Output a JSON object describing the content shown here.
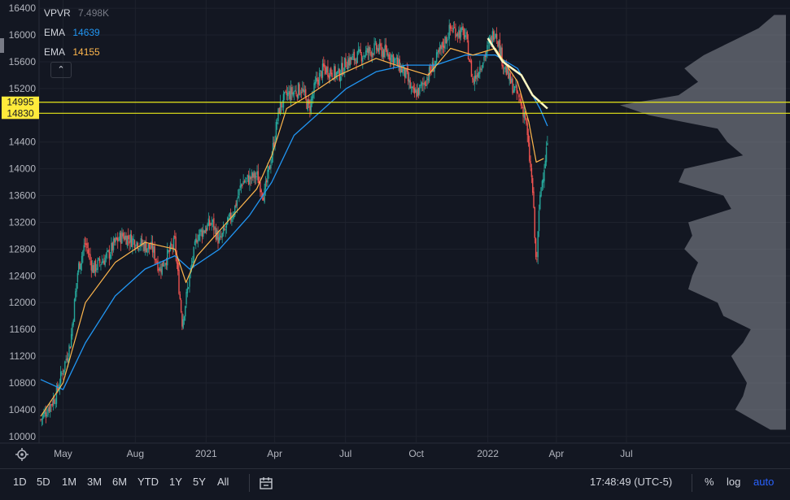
{
  "legend": {
    "vpvr": {
      "label": "VPVR",
      "value": "7.498K"
    },
    "ema1": {
      "label": "EMA",
      "value": "14639",
      "color": "#2196f3"
    },
    "ema2": {
      "label": "EMA",
      "value": "14155",
      "color": "#ffb74d"
    }
  },
  "price_tags": [
    {
      "value": "14995",
      "price": 14995
    },
    {
      "value": "14830",
      "price": 14830
    }
  ],
  "bottom": {
    "ranges": [
      "1D",
      "5D",
      "1M",
      "3M",
      "6M",
      "YTD",
      "1Y",
      "5Y",
      "All"
    ],
    "time": "17:48:49 (UTC-5)",
    "percent": "%",
    "log": "log",
    "auto": "auto"
  },
  "icons": {
    "settings": "gear-icon",
    "collapse": "chevron-up-icon",
    "goto": "calendar-icon"
  },
  "chart_data": {
    "type": "candlestick",
    "ylim": [
      9900,
      16450
    ],
    "y_ticks": [
      10000,
      10400,
      10800,
      11200,
      11600,
      12000,
      12400,
      12800,
      13200,
      13600,
      14000,
      14400,
      15200,
      15600,
      16000,
      16400
    ],
    "x_ticks": [
      {
        "label": "May",
        "t": 0.03
      },
      {
        "label": "Aug",
        "t": 0.127
      },
      {
        "label": "2021",
        "t": 0.222
      },
      {
        "label": "Apr",
        "t": 0.314
      },
      {
        "label": "Jul",
        "t": 0.409
      },
      {
        "label": "Oct",
        "t": 0.504
      },
      {
        "label": "2022",
        "t": 0.6
      },
      {
        "label": "Apr",
        "t": 0.692
      },
      {
        "label": "Jul",
        "t": 0.786
      }
    ],
    "price_path": [
      [
        0.0,
        10250
      ],
      [
        0.02,
        10600
      ],
      [
        0.04,
        11400
      ],
      [
        0.05,
        12500
      ],
      [
        0.06,
        12900
      ],
      [
        0.07,
        12500
      ],
      [
        0.09,
        12700
      ],
      [
        0.1,
        12900
      ],
      [
        0.11,
        13000
      ],
      [
        0.13,
        12900
      ],
      [
        0.15,
        12800
      ],
      [
        0.16,
        12500
      ],
      [
        0.18,
        12900
      ],
      [
        0.19,
        11700
      ],
      [
        0.2,
        12400
      ],
      [
        0.21,
        13000
      ],
      [
        0.23,
        13200
      ],
      [
        0.24,
        12900
      ],
      [
        0.26,
        13400
      ],
      [
        0.27,
        13800
      ],
      [
        0.29,
        13900
      ],
      [
        0.3,
        13600
      ],
      [
        0.31,
        14200
      ],
      [
        0.32,
        14900
      ],
      [
        0.33,
        15100
      ],
      [
        0.35,
        15200
      ],
      [
        0.36,
        14900
      ],
      [
        0.37,
        15300
      ],
      [
        0.38,
        15500
      ],
      [
        0.4,
        15400
      ],
      [
        0.41,
        15600
      ],
      [
        0.43,
        15700
      ],
      [
        0.45,
        15800
      ],
      [
        0.47,
        15700
      ],
      [
        0.49,
        15400
      ],
      [
        0.5,
        15100
      ],
      [
        0.51,
        15200
      ],
      [
        0.53,
        15600
      ],
      [
        0.55,
        16100
      ],
      [
        0.57,
        16000
      ],
      [
        0.58,
        15300
      ],
      [
        0.6,
        15800
      ],
      [
        0.61,
        16100
      ],
      [
        0.62,
        15600
      ],
      [
        0.63,
        15300
      ],
      [
        0.64,
        15100
      ],
      [
        0.65,
        14800
      ],
      [
        0.66,
        13700
      ],
      [
        0.665,
        12500
      ],
      [
        0.67,
        13600
      ],
      [
        0.675,
        14000
      ],
      [
        0.68,
        14400
      ]
    ],
    "ema_fast": [
      [
        0.0,
        10300
      ],
      [
        0.03,
        10800
      ],
      [
        0.06,
        12000
      ],
      [
        0.1,
        12600
      ],
      [
        0.14,
        12900
      ],
      [
        0.18,
        12800
      ],
      [
        0.195,
        12300
      ],
      [
        0.21,
        12700
      ],
      [
        0.25,
        13200
      ],
      [
        0.29,
        13700
      ],
      [
        0.31,
        14200
      ],
      [
        0.33,
        14900
      ],
      [
        0.36,
        15100
      ],
      [
        0.4,
        15400
      ],
      [
        0.45,
        15650
      ],
      [
        0.49,
        15500
      ],
      [
        0.52,
        15400
      ],
      [
        0.55,
        15800
      ],
      [
        0.58,
        15700
      ],
      [
        0.61,
        15800
      ],
      [
        0.64,
        15300
      ],
      [
        0.655,
        14700
      ],
      [
        0.665,
        14100
      ],
      [
        0.675,
        14155
      ]
    ],
    "ema_slow": [
      [
        0.0,
        10850
      ],
      [
        0.03,
        10700
      ],
      [
        0.06,
        11400
      ],
      [
        0.1,
        12100
      ],
      [
        0.14,
        12500
      ],
      [
        0.18,
        12700
      ],
      [
        0.2,
        12500
      ],
      [
        0.24,
        12800
      ],
      [
        0.28,
        13300
      ],
      [
        0.31,
        13800
      ],
      [
        0.34,
        14500
      ],
      [
        0.37,
        14800
      ],
      [
        0.41,
        15200
      ],
      [
        0.45,
        15450
      ],
      [
        0.49,
        15550
      ],
      [
        0.53,
        15550
      ],
      [
        0.57,
        15700
      ],
      [
        0.61,
        15700
      ],
      [
        0.64,
        15500
      ],
      [
        0.67,
        14900
      ],
      [
        0.68,
        14639
      ]
    ],
    "anchored_curve": [
      [
        0.6,
        15950
      ],
      [
        0.62,
        15600
      ],
      [
        0.645,
        15400
      ],
      [
        0.66,
        15100
      ],
      [
        0.68,
        14900
      ]
    ],
    "volume_profile": [
      [
        16300,
        0.06
      ],
      [
        16100,
        0.14
      ],
      [
        15900,
        0.28
      ],
      [
        15700,
        0.42
      ],
      [
        15500,
        0.52
      ],
      [
        15300,
        0.45
      ],
      [
        15100,
        0.55
      ],
      [
        14950,
        0.85
      ],
      [
        14800,
        0.7
      ],
      [
        14600,
        0.35
      ],
      [
        14400,
        0.3
      ],
      [
        14200,
        0.22
      ],
      [
        14000,
        0.52
      ],
      [
        13800,
        0.55
      ],
      [
        13600,
        0.32
      ],
      [
        13400,
        0.28
      ],
      [
        13200,
        0.5
      ],
      [
        13000,
        0.48
      ],
      [
        12800,
        0.52
      ],
      [
        12600,
        0.45
      ],
      [
        12400,
        0.48
      ],
      [
        12200,
        0.5
      ],
      [
        12000,
        0.35
      ],
      [
        11800,
        0.32
      ],
      [
        11600,
        0.18
      ],
      [
        11400,
        0.22
      ],
      [
        11200,
        0.28
      ],
      [
        11000,
        0.24
      ],
      [
        10800,
        0.2
      ],
      [
        10600,
        0.22
      ],
      [
        10400,
        0.26
      ],
      [
        10200,
        0.14
      ],
      [
        10100,
        0.08
      ]
    ]
  }
}
